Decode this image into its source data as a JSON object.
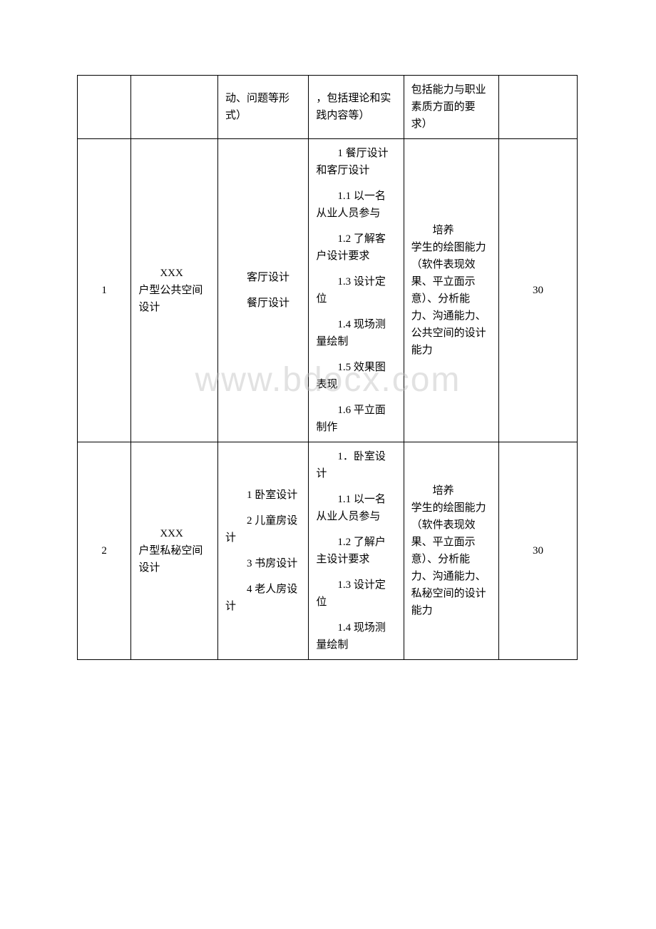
{
  "watermark": "www.bdocx.com",
  "header_row": {
    "col3": "动、问题等形式）",
    "col4": "，包括理论和实践内容等）",
    "col5": "包括能力与职业素质方面的要求）"
  },
  "rows": [
    {
      "num": "1",
      "title_line1": "XXX",
      "title_line2": "户型公共空间设计",
      "tasks": [
        "客厅设计",
        "餐厅设计"
      ],
      "content": [
        "1 餐厅设计和客厅设计",
        "1.1 以一名从业人员参与",
        "1.2 了解客户设计要求",
        "1.3 设计定位",
        "1.4 现场测量绘制",
        "1.5 效果图表现",
        "1.6 平立面制作"
      ],
      "goal_line1": "培养",
      "goal_line2": "学生的绘图能力（软件表现效果、平立面示意）、分析能力、沟通能力、公共空间的设计能力",
      "hours": "30"
    },
    {
      "num": "2",
      "title_line1": "XXX",
      "title_line2": "户型私秘空间设计",
      "tasks": [
        "1 卧室设计",
        "2 儿童房设计",
        "3 书房设计",
        "4 老人房设计"
      ],
      "content": [
        "1．卧室设计",
        "1.1 以一名从业人员参与",
        "1.2 了解户主设计要求",
        "1.3 设计定位",
        "1.4 现场测量绘制"
      ],
      "goal_line1": "培养",
      "goal_line2": "学生的绘图能力（软件表现效果、平立面示意）、分析能力、沟通能力、私秘空间的设计能力",
      "hours": "30"
    }
  ]
}
